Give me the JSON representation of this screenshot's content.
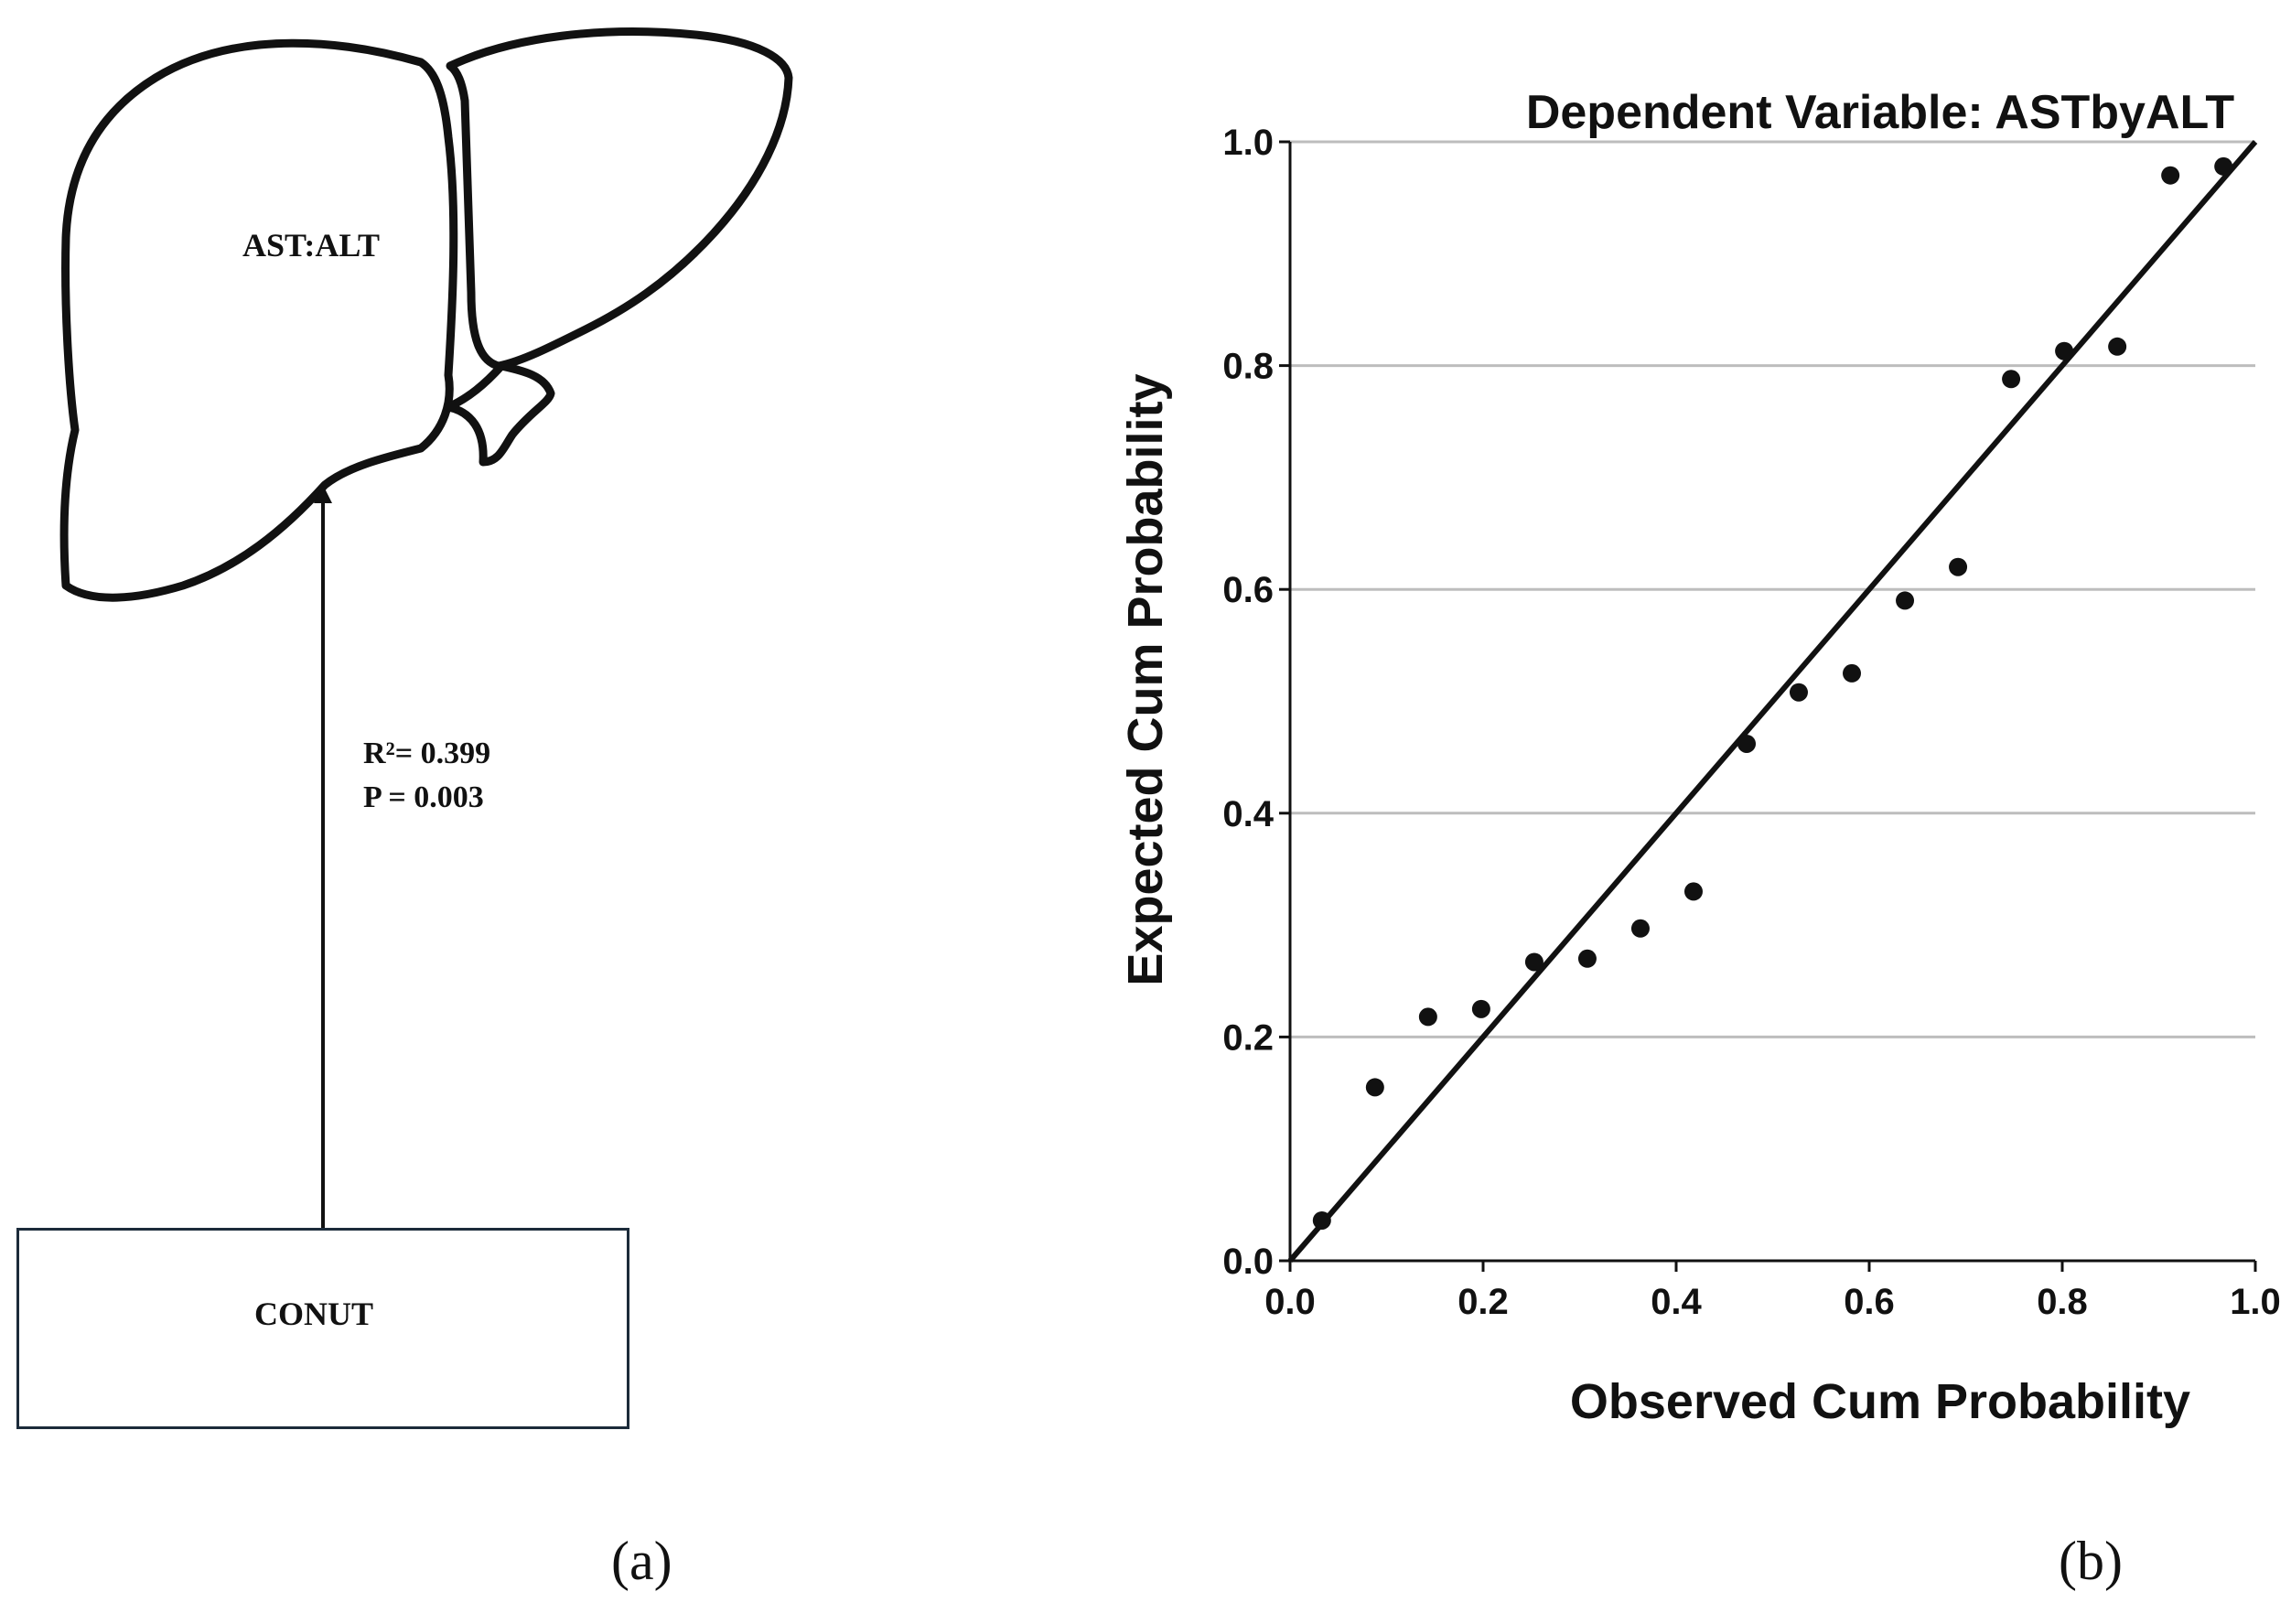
{
  "panel_a": {
    "liver_label": "AST:ALT",
    "r_squared": "R²= 0.399",
    "p_value": "P = 0.003",
    "box_label": "CONUT",
    "letter": "(a)"
  },
  "panel_b": {
    "letter": "(b)"
  },
  "colors": {
    "ink": "#111111",
    "gridline": "#bdbdbd",
    "box_border": "#1c2b3a"
  },
  "chart_data": {
    "type": "scatter",
    "title": "Dependent Variable: ASTbyALT",
    "xlabel": "Observed Cum Probability",
    "ylabel": "Expected Cum Probability",
    "xlim": [
      0,
      1
    ],
    "ylim": [
      0,
      1
    ],
    "x_ticks": [
      "0.0",
      "0.2",
      "0.4",
      "0.6",
      "0.8",
      "1.0"
    ],
    "y_ticks": [
      "0.0",
      "0.2",
      "0.4",
      "0.6",
      "0.8",
      "1.0"
    ],
    "grid": "horizontal",
    "reference_line": {
      "from": [
        0,
        0
      ],
      "to": [
        1,
        1
      ]
    },
    "points": [
      {
        "x": 0.033,
        "y": 0.036
      },
      {
        "x": 0.088,
        "y": 0.155
      },
      {
        "x": 0.143,
        "y": 0.218
      },
      {
        "x": 0.198,
        "y": 0.225
      },
      {
        "x": 0.253,
        "y": 0.267
      },
      {
        "x": 0.308,
        "y": 0.27
      },
      {
        "x": 0.363,
        "y": 0.297
      },
      {
        "x": 0.418,
        "y": 0.33
      },
      {
        "x": 0.473,
        "y": 0.462
      },
      {
        "x": 0.527,
        "y": 0.508
      },
      {
        "x": 0.582,
        "y": 0.525
      },
      {
        "x": 0.637,
        "y": 0.59
      },
      {
        "x": 0.692,
        "y": 0.62
      },
      {
        "x": 0.747,
        "y": 0.788
      },
      {
        "x": 0.802,
        "y": 0.813
      },
      {
        "x": 0.857,
        "y": 0.817
      },
      {
        "x": 0.912,
        "y": 0.97
      },
      {
        "x": 0.967,
        "y": 0.978
      }
    ]
  }
}
